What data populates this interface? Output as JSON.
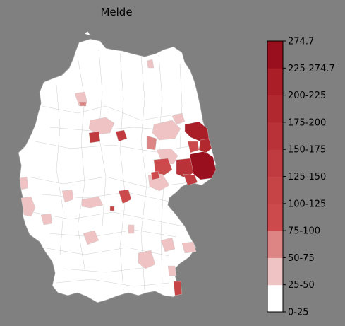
{
  "title": "Melde",
  "colorbar": {
    "top_value": "274.7",
    "bins": [
      {
        "label": "0-25",
        "color": "#ffffff"
      },
      {
        "label": "25-50",
        "color": "#efc3c3"
      },
      {
        "label": "50-75",
        "color": "#dd8484"
      },
      {
        "label": "75-100",
        "color": "#cc4a4c"
      },
      {
        "label": "100-125",
        "color": "#c64446"
      },
      {
        "label": "125-150",
        "color": "#c03b3f"
      },
      {
        "label": "150-175",
        "color": "#b93237"
      },
      {
        "label": "175-200",
        "color": "#b2282f"
      },
      {
        "label": "200-225",
        "color": "#aa1e28"
      },
      {
        "label": "225-274.7",
        "color": "#9a0f1d"
      }
    ]
  },
  "map": {
    "country": "Germany",
    "background": "#808080",
    "base_fill": "#ffffff",
    "border_color": "#bdbdbd"
  },
  "chart_data": {
    "type": "choropleth",
    "title": "Melde",
    "legend_placement": "right",
    "value_range": [
      0,
      274.7
    ],
    "bins": [
      "0-25",
      "25-50",
      "50-75",
      "75-100",
      "100-125",
      "125-150",
      "150-175",
      "175-200",
      "200-225",
      "225-274.7"
    ]
  }
}
